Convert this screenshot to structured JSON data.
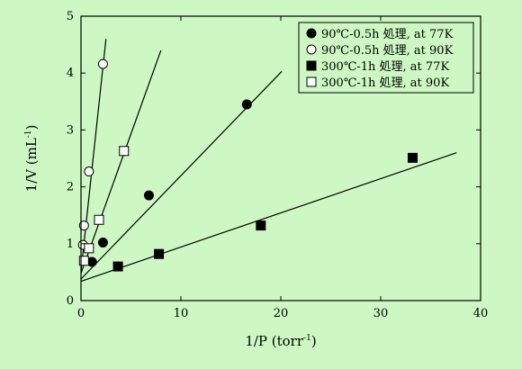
{
  "chart_data": {
    "type": "scatter",
    "xlabel": "1/P (torr-1)",
    "xlabel_main": "1/P (torr",
    "xlabel_sup": "-1",
    "xlabel_end": ")",
    "ylabel": "1/V (mL-1)",
    "ylabel_main": "1/V (mL",
    "ylabel_sup": "-1",
    "ylabel_end": ")",
    "xlim": [
      0,
      40
    ],
    "ylim": [
      0,
      5
    ],
    "xticks": [
      0,
      10,
      20,
      30,
      40
    ],
    "yticks": [
      0,
      1,
      2,
      3,
      4,
      5
    ],
    "grid": false,
    "legend_position": "top-right",
    "series": [
      {
        "name": "90℃-0.5h 処理, at 77K",
        "marker": "filled-circle",
        "points": [
          {
            "x": 1.1,
            "y": 0.68
          },
          {
            "x": 2.2,
            "y": 1.02
          },
          {
            "x": 6.8,
            "y": 1.85
          },
          {
            "x": 16.6,
            "y": 3.45
          }
        ],
        "fit_line": {
          "x1": 0.0,
          "y1": 0.38,
          "x2": 20.1,
          "y2": 4.03
        }
      },
      {
        "name": "90℃-0.5h 処理, at 90K",
        "marker": "open-circle",
        "points": [
          {
            "x": 0.2,
            "y": 0.98
          },
          {
            "x": 0.3,
            "y": 1.32
          },
          {
            "x": 0.8,
            "y": 2.27
          },
          {
            "x": 2.2,
            "y": 4.16
          }
        ],
        "fit_line": {
          "x1": 0.0,
          "y1": 0.52,
          "x2": 2.5,
          "y2": 4.6
        }
      },
      {
        "name": "300℃-1h 処理, at 77K",
        "marker": "filled-square",
        "points": [
          {
            "x": 3.7,
            "y": 0.6
          },
          {
            "x": 7.8,
            "y": 0.82
          },
          {
            "x": 18.0,
            "y": 1.32
          },
          {
            "x": 33.2,
            "y": 2.51
          }
        ],
        "fit_line": {
          "x1": 0.0,
          "y1": 0.34,
          "x2": 37.6,
          "y2": 2.6
        }
      },
      {
        "name": "300℃-1h 処理, at 90K",
        "marker": "open-square",
        "points": [
          {
            "x": 0.3,
            "y": 0.7
          },
          {
            "x": 0.8,
            "y": 0.92
          },
          {
            "x": 1.8,
            "y": 1.42
          },
          {
            "x": 4.3,
            "y": 2.63
          }
        ],
        "fit_line": {
          "x1": 0.0,
          "y1": 0.48,
          "x2": 8.0,
          "y2": 4.4
        }
      }
    ]
  }
}
